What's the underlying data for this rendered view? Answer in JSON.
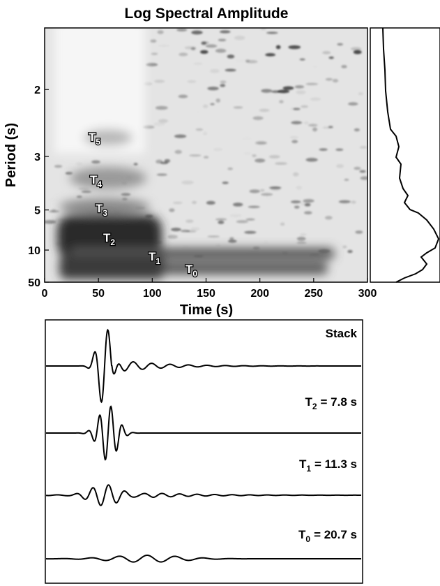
{
  "chart_data": {
    "type": "spectrogram",
    "title": "Log Spectral Amplitude",
    "xlabel": "Time (s)",
    "ylabel": "Period (s)",
    "xlim": [
      0,
      300
    ],
    "xticks": [
      0,
      50,
      100,
      150,
      200,
      250,
      300
    ],
    "ylim": [
      50,
      1.53
    ],
    "yticks": [
      2,
      3,
      5,
      10,
      50
    ],
    "yscale": "inverse",
    "annotations": [
      {
        "symbol": "T",
        "sub": "5"
      },
      {
        "symbol": "T",
        "sub": "4"
      },
      {
        "symbol": "T",
        "sub": "3"
      },
      {
        "symbol": "T",
        "sub": "2"
      },
      {
        "symbol": "T",
        "sub": "1"
      },
      {
        "symbol": "T",
        "sub": "0"
      }
    ],
    "waveforms": [
      {
        "text": "Stack"
      },
      {
        "symbol": "T",
        "sub": "2",
        "text": "= 7.8 s"
      },
      {
        "symbol": "T",
        "sub": "1",
        "text": "= 11.3 s"
      },
      {
        "symbol": "T",
        "sub": "0",
        "text": "= 20.7 s"
      }
    ]
  }
}
